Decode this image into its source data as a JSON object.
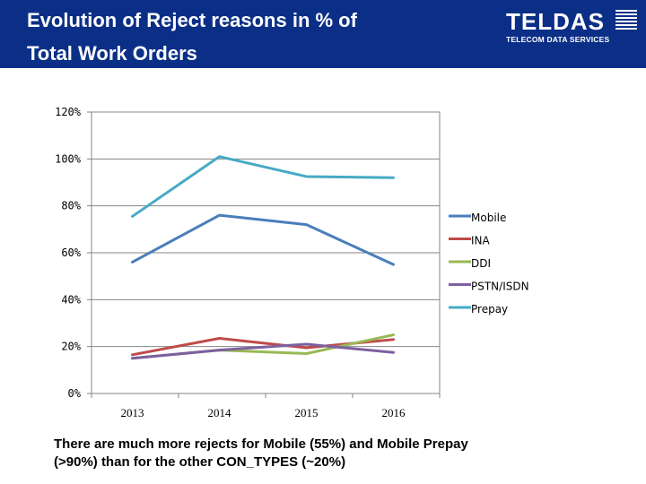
{
  "header": {
    "title_line1": "Evolution of Reject reasons in % of",
    "title_line2": "Total Work Orders",
    "logo_text": "TELDAS",
    "logo_subtext": "TELECOM DATA SERVICES"
  },
  "caption": {
    "line1": "There are much more rejects for Mobile (55%) and Mobile Prepay",
    "line2": "(>90%) than for the other CON_TYPES (~20%)"
  },
  "chart_data": {
    "type": "line",
    "categories": [
      "2013",
      "2014",
      "2015",
      "2016"
    ],
    "y_ticks": [
      "0%",
      "20%",
      "40%",
      "60%",
      "80%",
      "100%",
      "120%"
    ],
    "ylim": [
      0,
      120
    ],
    "legend_position": "right",
    "series": [
      {
        "name": "Mobile",
        "color": "#4a7ebb",
        "values": [
          56,
          76,
          72,
          55
        ]
      },
      {
        "name": "INA",
        "color": "#be4b48",
        "values": [
          16.5,
          23.5,
          19.5,
          23
        ]
      },
      {
        "name": "DDI",
        "color": "#98b954",
        "values": [
          15,
          18.5,
          17,
          25
        ]
      },
      {
        "name": "PSTN/ISDN",
        "color": "#7d60a0",
        "values": [
          15,
          18.5,
          21,
          17.5
        ]
      },
      {
        "name": "Prepay",
        "color": "#46aac5",
        "values": [
          75.5,
          101,
          92.5,
          92
        ]
      }
    ]
  }
}
